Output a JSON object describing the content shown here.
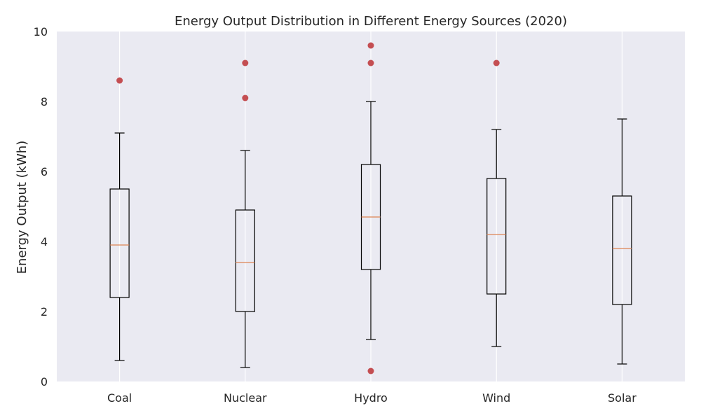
{
  "chart_data": {
    "type": "boxplot",
    "title": "Energy Output Distribution in Different Energy Sources (2020)",
    "xlabel": "",
    "ylabel": "Energy Output (kWh)",
    "ylim": [
      0,
      10
    ],
    "y_ticks": [
      0,
      2,
      4,
      6,
      8,
      10
    ],
    "grid": "vertical",
    "categories": [
      "Coal",
      "Nuclear",
      "Hydro",
      "Wind",
      "Solar"
    ],
    "boxes": [
      {
        "category": "Coal",
        "whisker_low": 0.6,
        "q1": 2.4,
        "median": 3.9,
        "q3": 5.5,
        "whisker_high": 7.1,
        "outliers": [
          8.6
        ]
      },
      {
        "category": "Nuclear",
        "whisker_low": 0.4,
        "q1": 2.0,
        "median": 3.4,
        "q3": 4.9,
        "whisker_high": 6.6,
        "outliers": [
          9.1,
          8.1
        ]
      },
      {
        "category": "Hydro",
        "whisker_low": 1.2,
        "q1": 3.2,
        "median": 4.7,
        "q3": 6.2,
        "whisker_high": 8.0,
        "outliers": [
          9.6,
          9.1,
          0.3
        ]
      },
      {
        "category": "Wind",
        "whisker_low": 1.0,
        "q1": 2.5,
        "median": 4.2,
        "q3": 5.8,
        "whisker_high": 7.2,
        "outliers": [
          9.1
        ]
      },
      {
        "category": "Solar",
        "whisker_low": 0.5,
        "q1": 2.2,
        "median": 3.8,
        "q3": 5.3,
        "whisker_high": 7.5,
        "outliers": []
      }
    ],
    "colors": {
      "plot_background": "#eaeaf2",
      "grid": "#ffffff",
      "box_edge": "#000000",
      "median": "#dd8452",
      "outlier": "#c44e52"
    }
  }
}
